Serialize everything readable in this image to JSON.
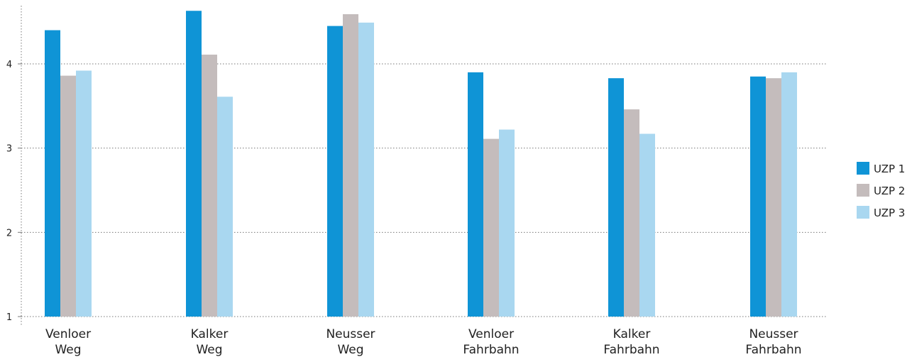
{
  "chart_data": {
    "type": "bar",
    "title": "",
    "xlabel": "",
    "ylabel": "",
    "categories": [
      [
        "Venloer",
        "Weg"
      ],
      [
        "Kalker",
        "Weg"
      ],
      [
        "Neusser",
        "Weg"
      ],
      [
        "Venloer",
        "Fahrbahn"
      ],
      [
        "Kalker",
        "Fahrbahn"
      ],
      [
        "Neusser",
        "Fahrbahn"
      ]
    ],
    "series": [
      {
        "name": "UZP 1",
        "color": "#0f94d6",
        "values": [
          4.4,
          4.63,
          4.45,
          3.9,
          3.83,
          3.85
        ]
      },
      {
        "name": "UZP 2",
        "color": "#c4bcbc",
        "values": [
          3.86,
          4.11,
          4.59,
          3.11,
          3.46,
          3.83
        ]
      },
      {
        "name": "UZP 3",
        "color": "#a9d7f0",
        "values": [
          3.92,
          3.61,
          4.49,
          3.22,
          3.17,
          3.9
        ]
      }
    ],
    "ylim": [
      1,
      4.7
    ],
    "yticks": [
      1,
      2,
      3,
      4
    ],
    "ytick_labels": [
      "1",
      "2",
      "3",
      "4"
    ],
    "grid": true,
    "legend_position": "right"
  }
}
